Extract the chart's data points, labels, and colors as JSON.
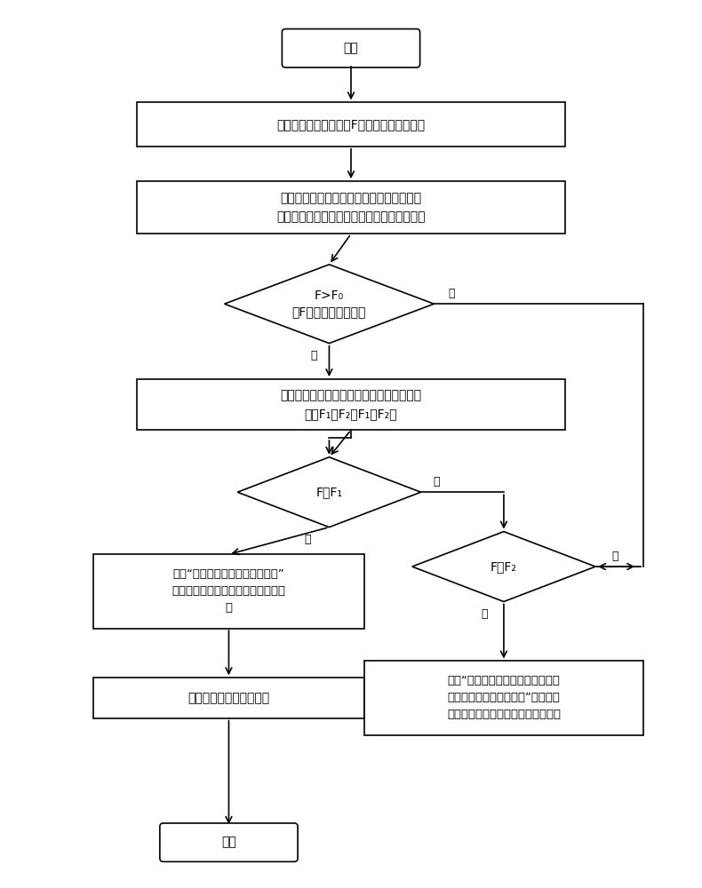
{
  "bg_color": "#ffffff",
  "line_color": "#000000",
  "text_color": "#000000",
  "box_color": "#ffffff",
  "font_size": 10,
  "start_text": "开始",
  "end_text": "结束",
  "box1_text": "采集当前油筱剩余油量F，获取当前车位信息",
  "box2_line1": "对当前车位到目的地进行路径规划，计算各",
  "box2_line2": "路段所需油量总和、沿途最近两个加油站信息",
  "diamond1_line1": "F>F₀",
  "diamond1_line2": "（F为所需油量总和）",
  "box3_line1": "计算当前车位到沿途最近两个加油站所需的",
  "box3_line2": "油量F₁、F₂（F₁＜F₂）",
  "diamond2_text": "F＜F₁",
  "box4_line1": "提示“无法到达沿途最近的加油站”",
  "box4_line2": "，引导车主添加最近加油站作为途径",
  "box4_line3": "点",
  "box5_text": "重新进行路径规划并导航",
  "diamond3_text": "F＜F₂",
  "box6_line1": "提示“错过沿途的下一个加油站，将",
  "box6_line2": "无法到达下下一个加油站”，引导车",
  "box6_line3": "主添加沿途第一个加油站作为途径点",
  "yes_text": "是",
  "no_text": "否"
}
